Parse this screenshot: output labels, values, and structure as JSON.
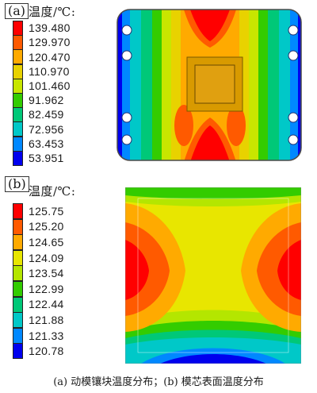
{
  "panel_a": {
    "tag": "(a)",
    "legend_title": "温度/℃:",
    "legend_levels": [
      {
        "label": "139.480",
        "color": "#ff0000"
      },
      {
        "label": "129.970",
        "color": "#ff5a00"
      },
      {
        "label": "120.470",
        "color": "#ffaa00"
      },
      {
        "label": "110.970",
        "color": "#e8d200"
      },
      {
        "label": "101.460",
        "color": "#c8e600"
      },
      {
        "label": "91.962",
        "color": "#33cc00"
      },
      {
        "label": "82.459",
        "color": "#00c878"
      },
      {
        "label": "72.956",
        "color": "#00c8c8"
      },
      {
        "label": "63.453",
        "color": "#0088ff"
      },
      {
        "label": "53.951",
        "color": "#0000ee"
      }
    ]
  },
  "panel_b": {
    "tag": "(b)",
    "legend_title": "温度/℃:",
    "legend_levels": [
      {
        "label": "125.75",
        "color": "#ff0000"
      },
      {
        "label": "125.20",
        "color": "#ff5a00"
      },
      {
        "label": "124.65",
        "color": "#ffaa00"
      },
      {
        "label": "124.09",
        "color": "#e8e600"
      },
      {
        "label": "123.54",
        "color": "#b4e600"
      },
      {
        "label": "122.99",
        "color": "#33cc00"
      },
      {
        "label": "122.44",
        "color": "#00c878"
      },
      {
        "label": "121.88",
        "color": "#00c8c8"
      },
      {
        "label": "121.33",
        "color": "#0088ff"
      },
      {
        "label": "120.78",
        "color": "#0000ee"
      }
    ]
  },
  "caption": "(a) 动模镶块温度分布；(b) 模芯表面温度分布"
}
